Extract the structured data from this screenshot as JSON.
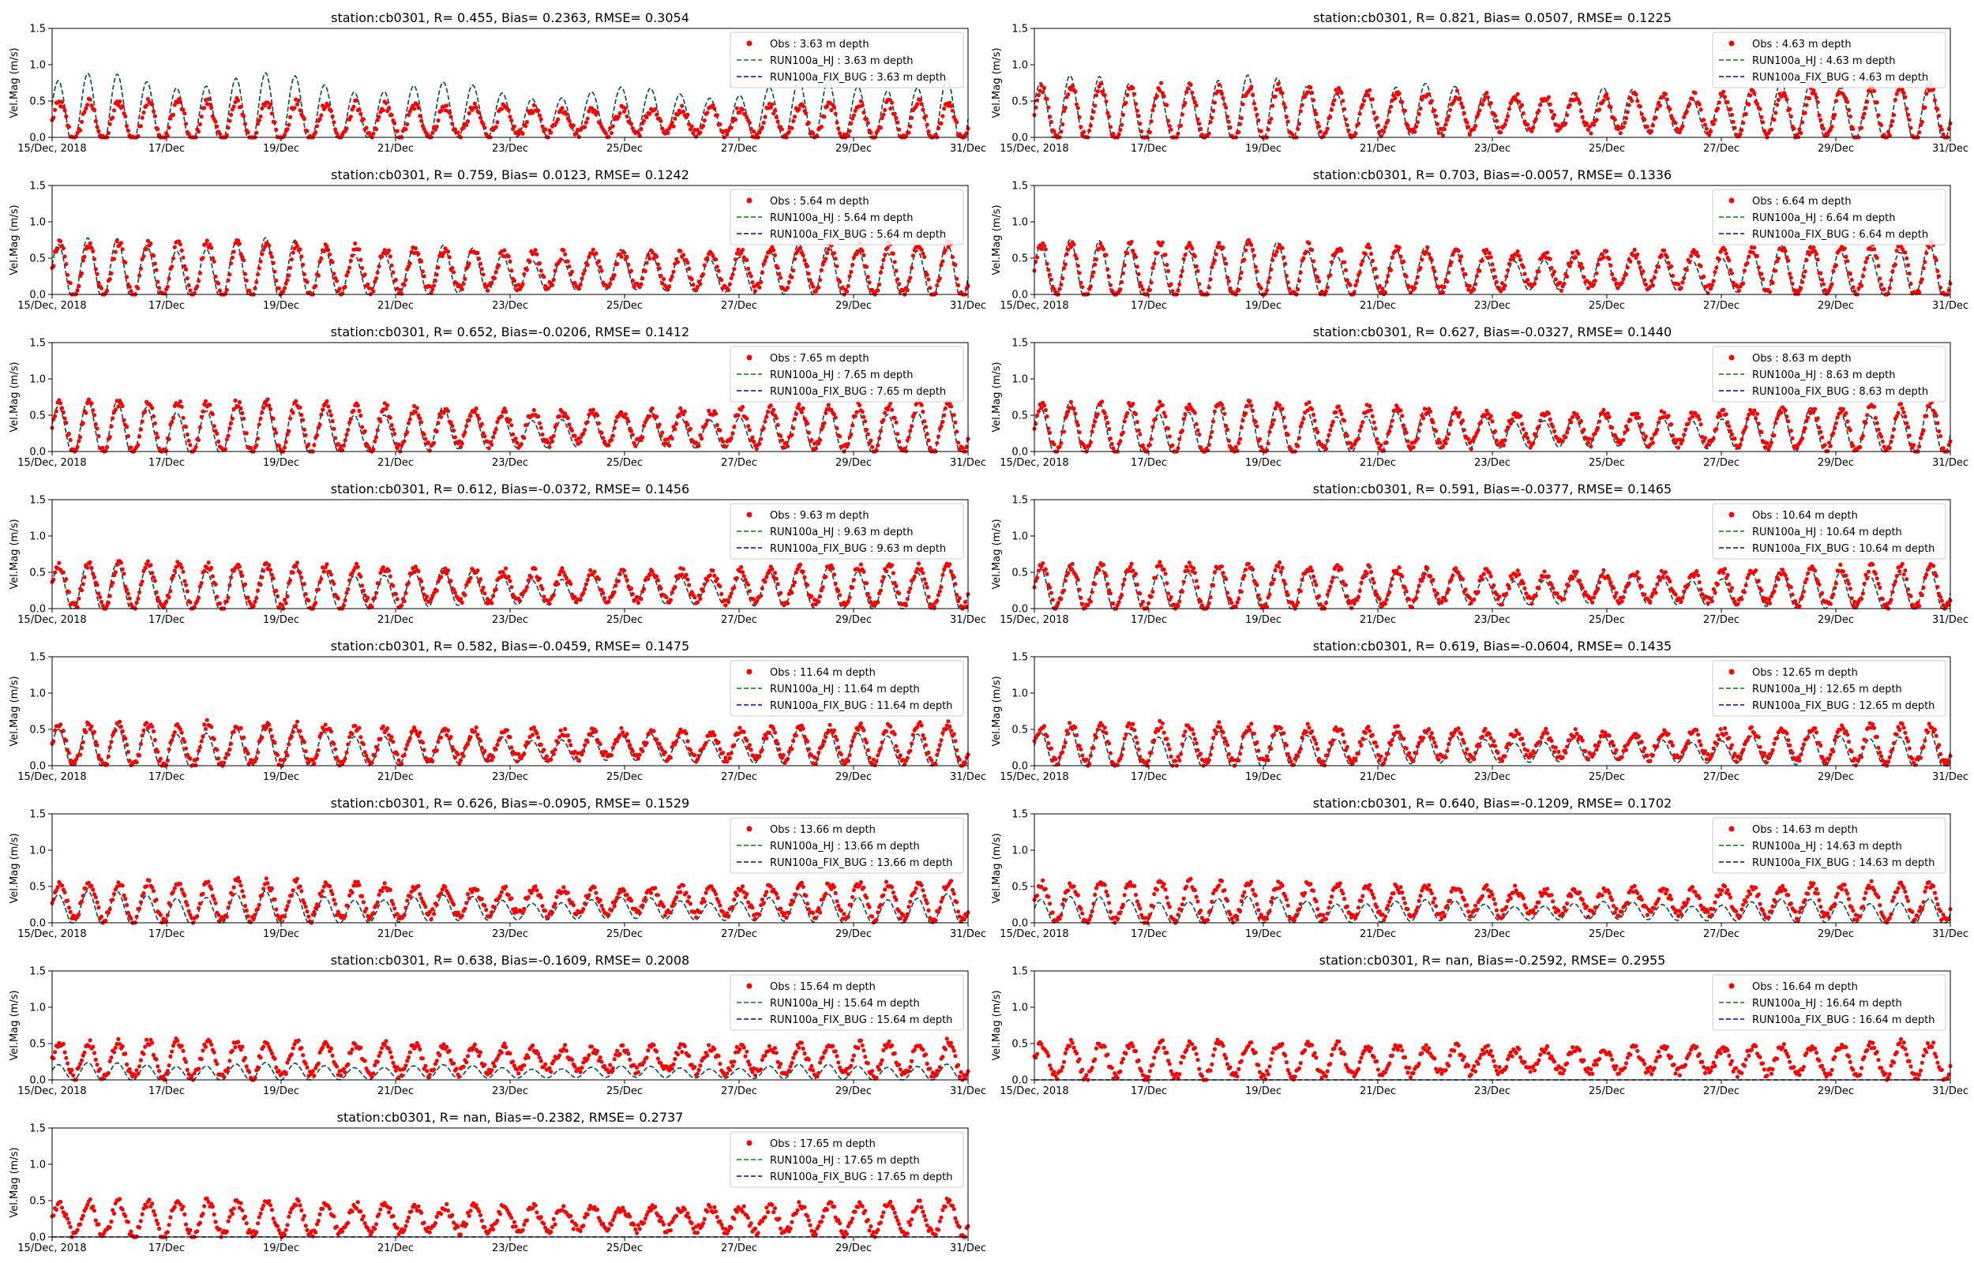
{
  "figure": {
    "ylabel": "Vel.Mag (m/s)",
    "ylim": [
      0,
      1.5
    ],
    "yticks": [
      "0.0",
      "0.5",
      "1.0",
      "1.5"
    ],
    "xticks": [
      "15/Dec, 2018",
      "17/Dec",
      "19/Dec",
      "21/Dec",
      "23/Dec",
      "25/Dec",
      "27/Dec",
      "29/Dec",
      "31/Dec"
    ],
    "colors": {
      "obs": "#ff0000",
      "hj": "#008000",
      "fix_bug": "#0000cc"
    }
  },
  "chart_data": [
    {
      "type": "line",
      "title": "station:cb0301, R= 0.455, Bias= 0.2363, RMSE= 0.3054",
      "legend": [
        "Obs : 3.63 m depth",
        "RUN100a_HJ : 3.63 m depth",
        "RUN100a_FIX_BUG : 3.63 m depth"
      ],
      "xlim_days": [
        0,
        16
      ],
      "ylim": [
        0,
        1.5
      ],
      "series": [
        {
          "name": "Obs : 3.63 m depth",
          "style": "markers",
          "mean": 0.22,
          "amp": 0.22
        },
        {
          "name": "RUN100a_HJ : 3.63 m depth",
          "style": "dashed",
          "mean": 0.32,
          "amp": 0.38
        },
        {
          "name": "RUN100a_FIX_BUG : 3.63 m depth",
          "style": "dashed",
          "mean": 0.32,
          "amp": 0.38
        }
      ]
    },
    {
      "type": "line",
      "title": "station:cb0301, R= 0.821, Bias= 0.0507, RMSE= 0.1225",
      "legend": [
        "Obs : 4.63 m depth",
        "RUN100a_HJ : 4.63 m depth",
        "RUN100a_FIX_BUG : 4.63 m depth"
      ],
      "xlim_days": [
        0,
        16
      ],
      "ylim": [
        0,
        1.5
      ],
      "series": [
        {
          "name": "Obs : 4.63 m depth",
          "style": "markers",
          "mean": 0.33,
          "amp": 0.3
        },
        {
          "name": "RUN100a_HJ : 4.63 m depth",
          "style": "dashed",
          "mean": 0.34,
          "amp": 0.34
        },
        {
          "name": "RUN100a_FIX_BUG : 4.63 m depth",
          "style": "dashed",
          "mean": 0.34,
          "amp": 0.34
        }
      ]
    },
    {
      "type": "line",
      "title": "station:cb0301, R= 0.759, Bias= 0.0123, RMSE= 0.1242",
      "legend": [
        "Obs : 5.64 m depth",
        "RUN100a_HJ : 5.64 m depth",
        "RUN100a_FIX_BUG : 5.64 m depth"
      ],
      "xlim_days": [
        0,
        16
      ],
      "ylim": [
        0,
        1.5
      ],
      "series": [
        {
          "name": "Obs : 5.64 m depth",
          "style": "markers",
          "mean": 0.34,
          "amp": 0.3
        },
        {
          "name": "RUN100a_HJ : 5.64 m depth",
          "style": "dashed",
          "mean": 0.3,
          "amp": 0.32
        },
        {
          "name": "RUN100a_FIX_BUG : 5.64 m depth",
          "style": "dashed",
          "mean": 0.3,
          "amp": 0.32
        }
      ]
    },
    {
      "type": "line",
      "title": "station:cb0301, R= 0.703, Bias=-0.0057, RMSE= 0.1336",
      "legend": [
        "Obs : 6.64 m depth",
        "RUN100a_HJ : 6.64 m depth",
        "RUN100a_FIX_BUG : 6.64 m depth"
      ],
      "xlim_days": [
        0,
        16
      ],
      "ylim": [
        0,
        1.5
      ],
      "series": [
        {
          "name": "Obs : 6.64 m depth",
          "style": "markers",
          "mean": 0.33,
          "amp": 0.3
        },
        {
          "name": "RUN100a_HJ : 6.64 m depth",
          "style": "dashed",
          "mean": 0.3,
          "amp": 0.3
        },
        {
          "name": "RUN100a_FIX_BUG : 6.64 m depth",
          "style": "dashed",
          "mean": 0.3,
          "amp": 0.3
        }
      ]
    },
    {
      "type": "line",
      "title": "station:cb0301, R= 0.652, Bias=-0.0206, RMSE= 0.1412",
      "legend": [
        "Obs : 7.65 m depth",
        "RUN100a_HJ : 7.65 m depth",
        "RUN100a_FIX_BUG : 7.65 m depth"
      ],
      "xlim_days": [
        0,
        16
      ],
      "ylim": [
        0,
        1.5
      ],
      "series": [
        {
          "name": "Obs : 7.65 m depth",
          "style": "markers",
          "mean": 0.33,
          "amp": 0.28
        },
        {
          "name": "RUN100a_HJ : 7.65 m depth",
          "style": "dashed",
          "mean": 0.28,
          "amp": 0.28
        },
        {
          "name": "RUN100a_FIX_BUG : 7.65 m depth",
          "style": "dashed",
          "mean": 0.28,
          "amp": 0.28
        }
      ]
    },
    {
      "type": "line",
      "title": "station:cb0301, R= 0.627, Bias=-0.0327, RMSE= 0.1440",
      "legend": [
        "Obs : 8.63 m depth",
        "RUN100a_HJ : 8.63 m depth",
        "RUN100a_FIX_BUG : 8.63 m depth"
      ],
      "xlim_days": [
        0,
        16
      ],
      "ylim": [
        0,
        1.5
      ],
      "series": [
        {
          "name": "Obs : 8.63 m depth",
          "style": "markers",
          "mean": 0.32,
          "amp": 0.27
        },
        {
          "name": "RUN100a_HJ : 8.63 m depth",
          "style": "dashed",
          "mean": 0.27,
          "amp": 0.27
        },
        {
          "name": "RUN100a_FIX_BUG : 8.63 m depth",
          "style": "dashed",
          "mean": 0.27,
          "amp": 0.27
        }
      ]
    },
    {
      "type": "line",
      "title": "station:cb0301, R= 0.612, Bias=-0.0372, RMSE= 0.1456",
      "legend": [
        "Obs : 9.63 m depth",
        "RUN100a_HJ : 9.63 m depth",
        "RUN100a_FIX_BUG : 9.63 m depth"
      ],
      "xlim_days": [
        0,
        16
      ],
      "ylim": [
        0,
        1.5
      ],
      "series": [
        {
          "name": "Obs : 9.63 m depth",
          "style": "markers",
          "mean": 0.31,
          "amp": 0.25
        },
        {
          "name": "RUN100a_HJ : 9.63 m depth",
          "style": "dashed",
          "mean": 0.26,
          "amp": 0.25
        },
        {
          "name": "RUN100a_FIX_BUG : 9.63 m depth",
          "style": "dashed",
          "mean": 0.26,
          "amp": 0.25
        }
      ]
    },
    {
      "type": "line",
      "title": "station:cb0301, R= 0.591, Bias=-0.0377, RMSE= 0.1465",
      "legend": [
        "Obs : 10.64 m depth",
        "RUN100a_HJ : 10.64 m depth",
        "RUN100a_FIX_BUG : 10.64 m depth"
      ],
      "xlim_days": [
        0,
        16
      ],
      "ylim": [
        0,
        1.5
      ],
      "series": [
        {
          "name": "Obs : 10.64 m depth",
          "style": "markers",
          "mean": 0.3,
          "amp": 0.24
        },
        {
          "name": "RUN100a_HJ : 10.64 m depth",
          "style": "dashed",
          "mean": 0.25,
          "amp": 0.24
        },
        {
          "name": "RUN100a_FIX_BUG : 10.64 m depth",
          "style": "dashed",
          "mean": 0.25,
          "amp": 0.24
        }
      ]
    },
    {
      "type": "line",
      "title": "station:cb0301, R= 0.582, Bias=-0.0459, RMSE= 0.1475",
      "legend": [
        "Obs : 11.64 m depth",
        "RUN100a_HJ : 11.64 m depth",
        "RUN100a_FIX_BUG : 11.64 m depth"
      ],
      "xlim_days": [
        0,
        16
      ],
      "ylim": [
        0,
        1.5
      ],
      "series": [
        {
          "name": "Obs : 11.64 m depth",
          "style": "markers",
          "mean": 0.29,
          "amp": 0.23
        },
        {
          "name": "RUN100a_HJ : 11.64 m depth",
          "style": "dashed",
          "mean": 0.23,
          "amp": 0.22
        },
        {
          "name": "RUN100a_FIX_BUG : 11.64 m depth",
          "style": "dashed",
          "mean": 0.23,
          "amp": 0.22
        }
      ]
    },
    {
      "type": "line",
      "title": "station:cb0301, R= 0.619, Bias=-0.0604, RMSE= 0.1435",
      "legend": [
        "Obs : 12.65 m depth",
        "RUN100a_HJ : 12.65 m depth",
        "RUN100a_FIX_BUG : 12.65 m depth"
      ],
      "xlim_days": [
        0,
        16
      ],
      "ylim": [
        0,
        1.5
      ],
      "series": [
        {
          "name": "Obs : 12.65 m depth",
          "style": "markers",
          "mean": 0.29,
          "amp": 0.22
        },
        {
          "name": "RUN100a_HJ : 12.65 m depth",
          "style": "dashed",
          "mean": 0.21,
          "amp": 0.2
        },
        {
          "name": "RUN100a_FIX_BUG : 12.65 m depth",
          "style": "dashed",
          "mean": 0.21,
          "amp": 0.2
        }
      ]
    },
    {
      "type": "line",
      "title": "station:cb0301, R= 0.626, Bias=-0.0905, RMSE= 0.1529",
      "legend": [
        "Obs : 13.66 m depth",
        "RUN100a_HJ : 13.66 m depth",
        "RUN100a_FIX_BUG : 13.66 m depth"
      ],
      "xlim_days": [
        0,
        16
      ],
      "ylim": [
        0,
        1.5
      ],
      "series": [
        {
          "name": "Obs : 13.66 m depth",
          "style": "markers",
          "mean": 0.3,
          "amp": 0.22
        },
        {
          "name": "RUN100a_HJ : 13.66 m depth",
          "style": "dashed",
          "mean": 0.18,
          "amp": 0.17
        },
        {
          "name": "RUN100a_FIX_BUG : 13.66 m depth",
          "style": "dashed",
          "mean": 0.18,
          "amp": 0.17
        }
      ]
    },
    {
      "type": "line",
      "title": "station:cb0301, R= 0.640, Bias=-0.1209, RMSE= 0.1702",
      "legend": [
        "Obs : 14.63 m depth",
        "RUN100a_HJ : 14.63 m depth",
        "RUN100a_FIX_BUG : 14.63 m depth"
      ],
      "xlim_days": [
        0,
        16
      ],
      "ylim": [
        0,
        1.5
      ],
      "series": [
        {
          "name": "Obs : 14.63 m depth",
          "style": "markers",
          "mean": 0.29,
          "amp": 0.21
        },
        {
          "name": "RUN100a_HJ : 14.63 m depth",
          "style": "dashed",
          "mean": 0.15,
          "amp": 0.14
        },
        {
          "name": "RUN100a_FIX_BUG : 14.63 m depth",
          "style": "dashed",
          "mean": 0.15,
          "amp": 0.14
        }
      ]
    },
    {
      "type": "line",
      "title": "station:cb0301, R= 0.638, Bias=-0.1609, RMSE= 0.2008",
      "legend": [
        "Obs : 15.64 m depth",
        "RUN100a_HJ : 15.64 m depth",
        "RUN100a_FIX_BUG : 15.64 m depth"
      ],
      "xlim_days": [
        0,
        16
      ],
      "ylim": [
        0,
        1.5
      ],
      "series": [
        {
          "name": "Obs : 15.64 m depth",
          "style": "markers",
          "mean": 0.28,
          "amp": 0.2
        },
        {
          "name": "RUN100a_HJ : 15.64 m depth",
          "style": "dashed",
          "mean": 0.1,
          "amp": 0.09
        },
        {
          "name": "RUN100a_FIX_BUG : 15.64 m depth",
          "style": "dashed",
          "mean": 0.1,
          "amp": 0.09
        }
      ]
    },
    {
      "type": "line",
      "title": "station:cb0301, R=   nan, Bias=-0.2592, RMSE= 0.2955",
      "legend": [
        "Obs : 16.64 m depth",
        "RUN100a_HJ : 16.64 m depth",
        "RUN100a_FIX_BUG : 16.64 m depth"
      ],
      "xlim_days": [
        0,
        16
      ],
      "ylim": [
        0,
        1.5
      ],
      "series": [
        {
          "name": "Obs : 16.64 m depth",
          "style": "markers",
          "mean": 0.27,
          "amp": 0.2
        },
        {
          "name": "RUN100a_HJ : 16.64 m depth",
          "style": "dashed",
          "mean": 0.0,
          "amp": 0.0
        },
        {
          "name": "RUN100a_FIX_BUG : 16.64 m depth",
          "style": "dashed",
          "mean": 0.0,
          "amp": 0.0
        }
      ]
    },
    {
      "type": "line",
      "title": "station:cb0301, R=   nan, Bias=-0.2382, RMSE= 0.2737",
      "legend": [
        "Obs : 17.65 m depth",
        "RUN100a_HJ : 17.65 m depth",
        "RUN100a_FIX_BUG : 17.65 m depth"
      ],
      "xlim_days": [
        0,
        16
      ],
      "ylim": [
        0,
        1.5
      ],
      "series": [
        {
          "name": "Obs : 17.65 m depth",
          "style": "markers",
          "mean": 0.25,
          "amp": 0.19
        },
        {
          "name": "RUN100a_HJ : 17.65 m depth",
          "style": "dashed",
          "mean": 0.0,
          "amp": 0.0
        },
        {
          "name": "RUN100a_FIX_BUG : 17.65 m depth",
          "style": "dashed",
          "mean": 0.0,
          "amp": 0.0
        }
      ]
    }
  ]
}
